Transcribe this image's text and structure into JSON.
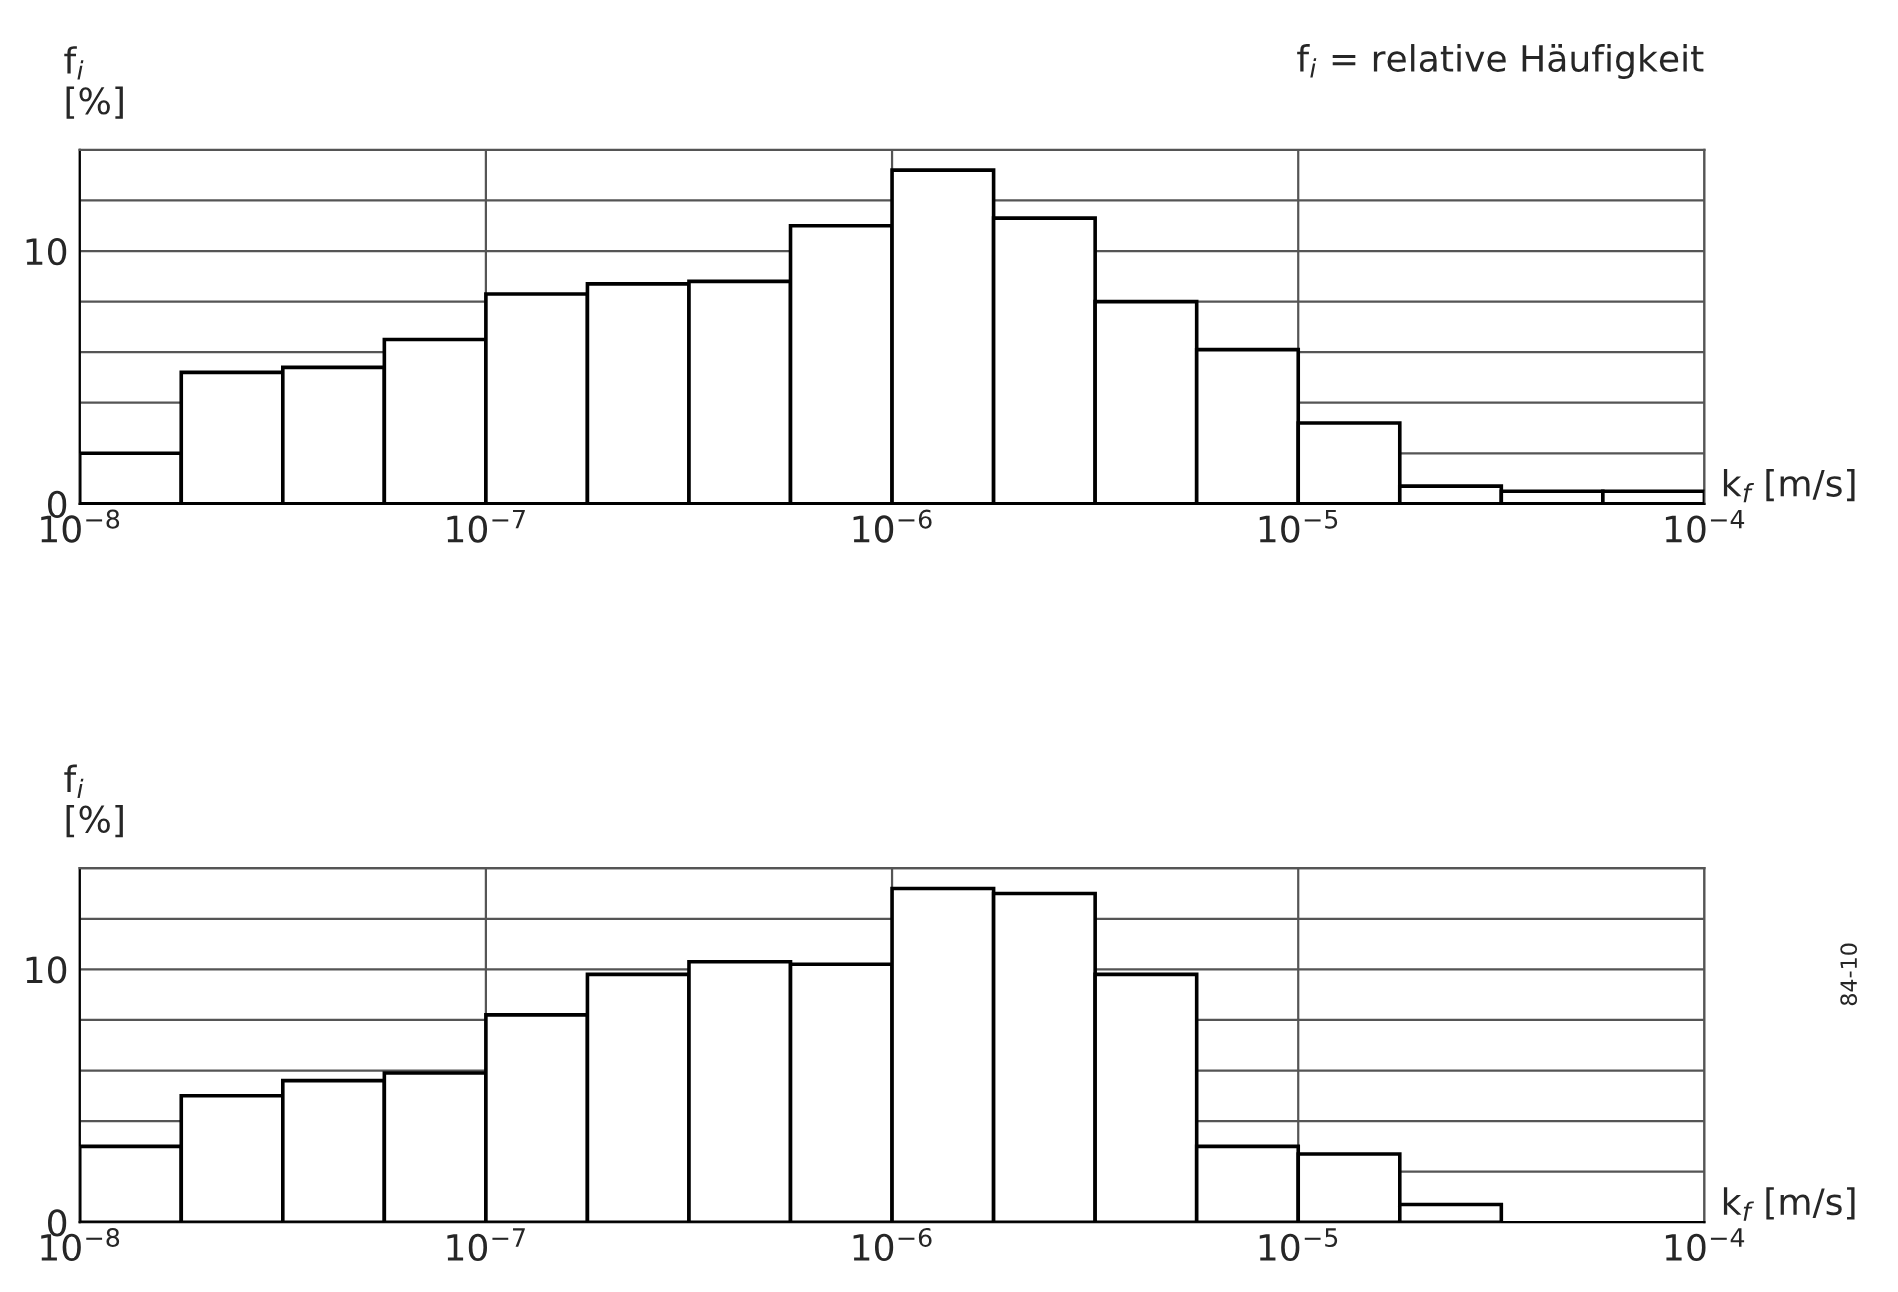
{
  "chart_data": [
    {
      "type": "histogram",
      "log": "x",
      "xlabel": "k$_{f}$ [m/s]",
      "ylabel": "f$_{i}$\n[%]",
      "bins": [
        1e-08,
        1.7783e-08,
        3.1623e-08,
        5.6234e-08,
        1e-07,
        1.7783e-07,
        3.1623e-07,
        5.6234e-07,
        1e-06,
        1.7783e-06,
        3.1623e-06,
        5.6234e-06,
        1e-05,
        1.7783e-05,
        3.1623e-05,
        5.6234e-05,
        0.0001
      ],
      "values": [
        2.0,
        5.2,
        5.4,
        6.5,
        8.3,
        8.7,
        8.8,
        11.0,
        13.2,
        11.3,
        8.0,
        6.1,
        3.2,
        0.7,
        0.5,
        0.5
      ],
      "color": "#ffffff",
      "xlim": [
        1e-08,
        0.0001
      ],
      "xticks": [
        {
          "value": 1e-08,
          "label": "10$^{−8}$"
        },
        {
          "value": 1e-07,
          "label": "10$^{−7}$"
        },
        {
          "value": 1e-06,
          "label": "10$^{−6}$"
        },
        {
          "value": 1e-05,
          "label": "10$^{−5}$"
        },
        {
          "value": 0.0001,
          "label": "10$^{−4}$"
        }
      ],
      "ylim": [
        0,
        14
      ],
      "yticks": [
        0,
        {
          "value": 2,
          "label": null
        },
        {
          "value": 4,
          "label": null
        },
        {
          "value": 6,
          "label": null
        },
        {
          "value": 8,
          "label": null
        },
        10,
        {
          "value": 12,
          "label": null
        },
        {
          "value": 14,
          "label": null
        }
      ],
      "grid": true,
      "annotations": [
        "f$_{i}$ = relative Häufigkeit"
      ]
    },
    {
      "type": "histogram",
      "log": "x",
      "xlabel": "k$_{f}$ [m/s]",
      "ylabel": "f$_{i}$\n[%]",
      "bins": [
        1e-08,
        1.7783e-08,
        3.1623e-08,
        5.6234e-08,
        1e-07,
        1.7783e-07,
        3.1623e-07,
        5.6234e-07,
        1e-06,
        1.7783e-06,
        3.1623e-06,
        5.6234e-06,
        1e-05,
        1.7783e-05,
        3.1623e-05,
        5.6234e-05,
        0.0001
      ],
      "values": [
        3.0,
        5.0,
        5.6,
        5.9,
        8.2,
        9.8,
        10.3,
        10.2,
        13.2,
        13.0,
        9.8,
        3.0,
        2.7,
        0.7,
        null,
        null
      ],
      "color": "#ffffff",
      "xlim": [
        1e-08,
        0.0001
      ],
      "xticks": [
        {
          "value": 1e-08,
          "label": "10$^{−8}$"
        },
        {
          "value": 1e-07,
          "label": "10$^{−7}$"
        },
        {
          "value": 1e-06,
          "label": "10$^{−6}$"
        },
        {
          "value": 1e-05,
          "label": "10$^{−5}$"
        },
        {
          "value": 0.0001,
          "label": "10$^{−4}$"
        }
      ],
      "ylim": [
        0,
        14
      ],
      "yticks": [
        0,
        {
          "value": 2,
          "label": null
        },
        {
          "value": 4,
          "label": null
        },
        {
          "value": 6,
          "label": null
        },
        {
          "value": 8,
          "label": null
        },
        10,
        {
          "value": 12,
          "label": null
        },
        {
          "value": 14,
          "label": null
        }
      ],
      "grid": true,
      "annotations": [
        "84-10"
      ]
    }
  ]
}
